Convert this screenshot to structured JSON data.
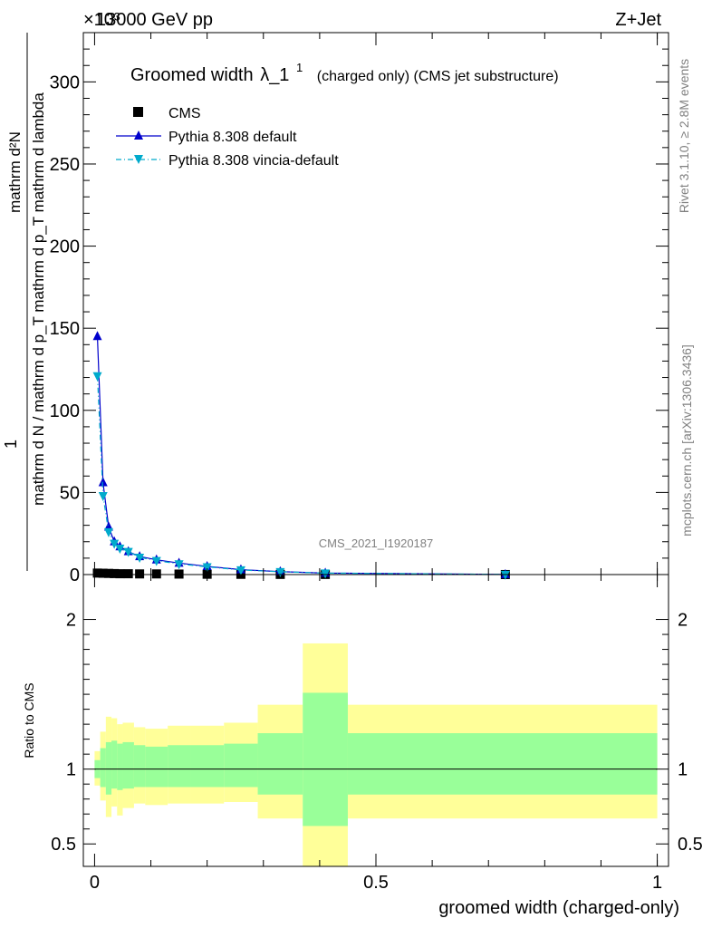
{
  "header": {
    "energy_label": "13000 GeV pp",
    "process_label": "Z+Jet",
    "exponent_label": "×10³",
    "watermark": "CMS_2021_I1920187"
  },
  "side_labels": {
    "rivet": "Rivet 3.1.10, ≥ 2.8M events",
    "mcplots": "mcplots.cern.ch [arXiv:1306.3436]"
  },
  "chart_data": [
    {
      "type": "line",
      "title": "Groomed width",
      "title_symbol": "λ_1",
      "title_superscript": "1",
      "title_suffix": "(charged only) (CMS jet substructure)",
      "ylabel_numerator": "1",
      "ylabel_top": "mathrm d²N",
      "ylabel_bottom": "mathrm d N / mathrm d p_T mathrm d p_T mathrm d lambda",
      "xlim": [
        -0.02,
        1.02
      ],
      "ylim": [
        0,
        330
      ],
      "yticks": [
        0,
        50,
        100,
        150,
        200,
        250,
        300
      ],
      "legend_position": "top-left",
      "series": [
        {
          "name": "CMS",
          "style": "marker-square",
          "color": "#000000",
          "x": [
            0.005,
            0.015,
            0.025,
            0.035,
            0.045,
            0.06,
            0.08,
            0.11,
            0.15,
            0.2,
            0.26,
            0.33,
            0.41,
            0.73
          ],
          "y": [
            0.9,
            0.8,
            0.7,
            0.6,
            0.5,
            0.5,
            0.4,
            0.4,
            0.3,
            0.2,
            0.15,
            0.1,
            0.08,
            0.02
          ]
        },
        {
          "name": "Pythia 8.308 default",
          "style": "solid-triangle-up",
          "color": "#0000cc",
          "x": [
            0.005,
            0.015,
            0.025,
            0.035,
            0.045,
            0.06,
            0.08,
            0.11,
            0.15,
            0.2,
            0.26,
            0.33,
            0.41,
            0.73
          ],
          "y": [
            145,
            56,
            29,
            20,
            17,
            14,
            11,
            9,
            7,
            5,
            3,
            1.8,
            0.9,
            0.1
          ]
        },
        {
          "name": "Pythia 8.308 vincia-default",
          "style": "dashdot-triangle-down",
          "color": "#00aacc",
          "x": [
            0.005,
            0.015,
            0.025,
            0.035,
            0.045,
            0.06,
            0.08,
            0.11,
            0.15,
            0.2,
            0.26,
            0.33,
            0.41,
            0.73
          ],
          "y": [
            121,
            48,
            26,
            19,
            16,
            14,
            10.5,
            8.5,
            6.5,
            4.7,
            2.8,
            1.7,
            0.9,
            0.1
          ]
        }
      ]
    },
    {
      "type": "area",
      "ylabel": "Ratio to CMS",
      "xlabel": "groomed width (charged-only)",
      "xlim": [
        -0.02,
        1.02
      ],
      "ylim": [
        0.35,
        2.3
      ],
      "yticks": [
        0.5,
        1,
        2
      ],
      "xticks": [
        0,
        0.5,
        1
      ],
      "xtick_labels": [
        "0",
        "0.5",
        "1"
      ],
      "reference_line": 1,
      "bands": {
        "edges": [
          0,
          0.01,
          0.02,
          0.03,
          0.04,
          0.05,
          0.07,
          0.09,
          0.13,
          0.17,
          0.23,
          0.29,
          0.37,
          0.45,
          1.0
        ],
        "inner_low": [
          0.94,
          0.88,
          0.83,
          0.87,
          0.86,
          0.87,
          0.88,
          0.88,
          0.88,
          0.88,
          0.88,
          0.83,
          0.62,
          0.83
        ],
        "inner_high": [
          1.06,
          1.14,
          1.18,
          1.19,
          1.17,
          1.18,
          1.16,
          1.15,
          1.16,
          1.16,
          1.17,
          1.24,
          1.51,
          1.24
        ],
        "outer_low": [
          0.89,
          0.79,
          0.68,
          0.75,
          0.69,
          0.74,
          0.77,
          0.76,
          0.77,
          0.77,
          0.78,
          0.67,
          0.35,
          0.67
        ],
        "outer_high": [
          1.12,
          1.25,
          1.35,
          1.34,
          1.3,
          1.31,
          1.28,
          1.27,
          1.29,
          1.29,
          1.31,
          1.43,
          1.84,
          1.43
        ],
        "inner_color": "#99ff99",
        "outer_color": "#ffff99"
      }
    }
  ]
}
